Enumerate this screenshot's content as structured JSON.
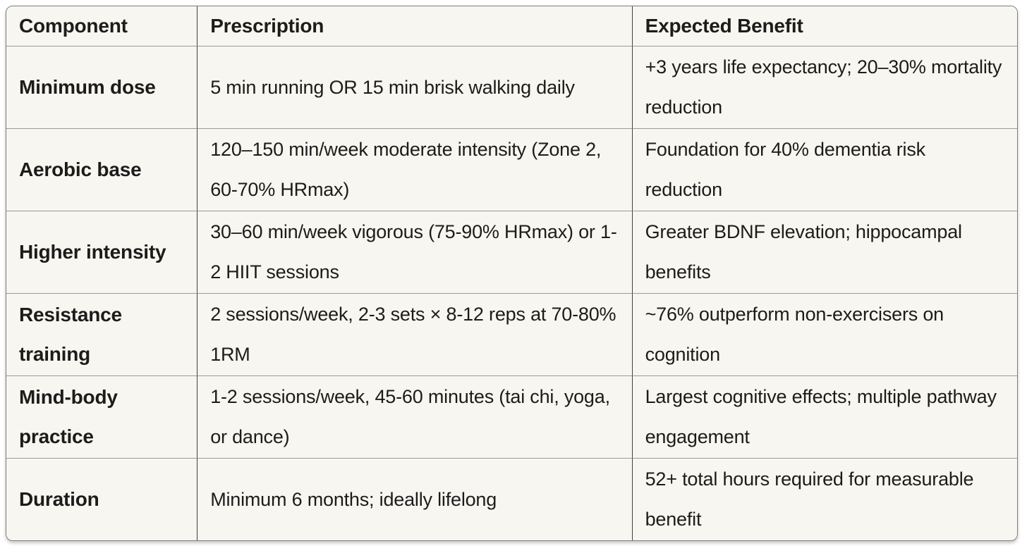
{
  "table": {
    "columns": [
      "Component",
      "Prescription",
      "Expected Benefit"
    ],
    "rows": [
      {
        "component": "Minimum dose",
        "prescription": "5 min running OR 15 min brisk walking daily",
        "benefit": "+3 years life expectancy; 20–30% mortality reduction"
      },
      {
        "component": "Aerobic base",
        "prescription": "120–150 min/week moderate intensity (Zone 2, 60-70% HRmax)",
        "benefit": "Foundation for 40% dementia risk reduction"
      },
      {
        "component": "Higher intensity",
        "prescription": "30–60 min/week vigorous (75-90% HRmax) or 1-2 HIIT sessions",
        "benefit": "Greater BDNF elevation; hippocampal benefits"
      },
      {
        "component": "Resistance training",
        "prescription": "2 sessions/week, 2-3 sets × 8-12 reps at 70-80% 1RM",
        "benefit": "~76% outperform non-exercisers on cognition"
      },
      {
        "component": "Mind-body practice",
        "prescription": "1-2 sessions/week, 45-60 minutes (tai chi, yoga, or dance)",
        "benefit": "Largest cognitive effects; multiple pathway engagement"
      },
      {
        "component": "Duration",
        "prescription": "Minimum 6 months; ideally lifelong",
        "benefit": "52+ total hours required for measurable benefit"
      }
    ]
  },
  "colors": {
    "page_background": "#ffffff",
    "cell_background": "#f8f6f1",
    "text": "#1c1c1a",
    "row_divider": "#9a9a97",
    "column_divider": "#3f3f3d",
    "outer_border": "#7d7d7a"
  }
}
